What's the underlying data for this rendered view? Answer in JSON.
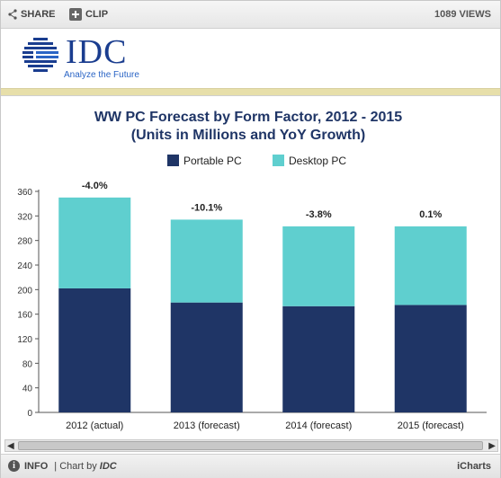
{
  "toolbar": {
    "share_label": "SHARE",
    "clip_label": "CLIP",
    "views_label": "1089 VIEWS"
  },
  "logo": {
    "wordmark": "IDC",
    "tagline": "Analyze the Future"
  },
  "chart_data": {
    "type": "bar",
    "stacked": true,
    "title": "WW PC Forecast by Form Factor, 2012 - 2015",
    "subtitle": "(Units in Millions and YoY Growth)",
    "categories": [
      "2012 (actual)",
      "2013 (forecast)",
      "2014 (forecast)",
      "2015 (forecast)"
    ],
    "series": [
      {
        "name": "Portable PC",
        "color": "#1f3566",
        "values": [
          202,
          179,
          173,
          175
        ]
      },
      {
        "name": "Desktop PC",
        "color": "#5fcfcf",
        "values": [
          148,
          135,
          130,
          128
        ]
      }
    ],
    "annotations": [
      "-4.0%",
      "-10.1%",
      "-3.8%",
      "0.1%"
    ],
    "yticks": [
      0,
      40,
      80,
      120,
      160,
      200,
      240,
      280,
      320,
      360
    ],
    "ylim": [
      0,
      360
    ],
    "grid": false,
    "legend_position": "top"
  },
  "footer": {
    "info_label": "INFO",
    "chart_by_label": "| Chart by",
    "chart_by_brand": "IDC",
    "icharts_label": "iCharts"
  },
  "scrollbar": {
    "left_arrow": "◀",
    "right_arrow": "▶"
  }
}
